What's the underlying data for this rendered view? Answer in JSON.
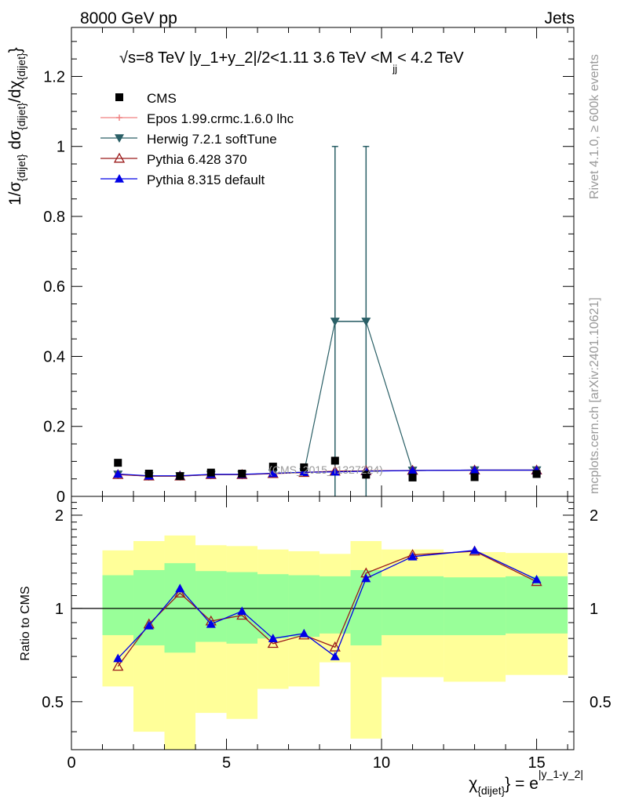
{
  "header": {
    "left": "8000 GeV pp",
    "right": "Jets"
  },
  "side_label_top": "Rivet 4.1.0, ≥ 600k events",
  "side_label_bottom": "mcplots.cern.ch [arXiv:2401.10621]",
  "watermark": "(CMS_2015_I1327224)",
  "chart_data": [
    {
      "type": "scatter",
      "title_parts": {
        "sqrt": "√",
        "main": "s=8 TeV |y_1+y_2|/2<1.11 3.6 TeV <M",
        "sub": "jj",
        "tail": "< 4.2 TeV"
      },
      "ylabel": {
        "p1": "1/σ",
        "s1": "{dijet}",
        "p2": " dσ",
        "s2": "{dijet}",
        "p3": "/dχ",
        "s3": "{dijet}",
        "p4": "}"
      },
      "xlim": [
        0,
        16.2
      ],
      "ylim": [
        0,
        1.34
      ],
      "yticks": [
        0,
        0.2,
        0.4,
        0.6,
        0.8,
        1,
        1.2
      ],
      "ytick_labels": [
        "0",
        "0.2",
        "0.4",
        "0.6",
        "0.8",
        "1",
        "1.2"
      ],
      "x": [
        1.5,
        2.5,
        3.5,
        4.5,
        5.5,
        6.5,
        7.5,
        8.5,
        9.5,
        11,
        13,
        15
      ],
      "series": [
        {
          "name": "CMS",
          "color": "#000000",
          "marker": "square",
          "values": [
            0.096,
            0.065,
            0.058,
            0.068,
            0.065,
            0.085,
            0.083,
            0.102,
            0.062,
            0.054,
            0.055,
            0.064
          ]
        },
        {
          "name": "Epos 1.99.crmc.1.6.0 lhc",
          "color": "#f08080",
          "marker": "cross",
          "values": [
            0.063,
            0.058,
            0.058,
            0.062,
            0.062,
            0.066,
            0.069,
            0.072,
            0.073,
            0.074,
            0.075,
            0.075
          ]
        },
        {
          "name": "Herwig 7.2.1 softTune",
          "color": "#2a5f66",
          "marker": "triangle-down",
          "values": [
            0.063,
            0.058,
            0.058,
            0.062,
            0.062,
            0.066,
            0.069,
            0.5,
            0.5,
            0.074,
            0.075,
            0.075
          ],
          "errors": [
            null,
            null,
            null,
            null,
            null,
            null,
            null,
            0.5,
            0.5,
            null,
            null,
            null
          ]
        },
        {
          "name": "Pythia 6.428 370",
          "color": "#9b1b1b",
          "marker": "triangle-open",
          "values": [
            0.062,
            0.058,
            0.058,
            0.062,
            0.062,
            0.065,
            0.068,
            0.072,
            0.073,
            0.074,
            0.075,
            0.075
          ]
        },
        {
          "name": "Pythia 8.315 default",
          "color": "#0000e6",
          "marker": "triangle",
          "values": [
            0.064,
            0.059,
            0.059,
            0.063,
            0.063,
            0.066,
            0.069,
            0.07,
            0.072,
            0.074,
            0.075,
            0.075
          ]
        }
      ]
    },
    {
      "type": "line",
      "ylabel": "Ratio to CMS",
      "xlabel": {
        "chi": "χ",
        "sub": "{dijet}",
        "eq": "} = e",
        "sup": "|y_1-y_2|"
      },
      "xlim": [
        0,
        16.2
      ],
      "ylim": [
        0.35,
        2.3
      ],
      "xticks": [
        0,
        5,
        10,
        15
      ],
      "xtick_labels": [
        "0",
        "5",
        "10",
        "15"
      ],
      "yticks": [
        0.5,
        1,
        2
      ],
      "ytick_labels": [
        "0.5",
        "1",
        "2"
      ],
      "reference": 1,
      "bands": [
        {
          "x0": 1,
          "x1": 2,
          "yellow": [
            0.56,
            1.54
          ],
          "green": [
            0.82,
            1.28
          ]
        },
        {
          "x0": 2,
          "x1": 3,
          "yellow": [
            0.4,
            1.65
          ],
          "green": [
            0.76,
            1.33
          ]
        },
        {
          "x0": 3,
          "x1": 4,
          "yellow": [
            0.35,
            1.72
          ],
          "green": [
            0.72,
            1.4
          ]
        },
        {
          "x0": 4,
          "x1": 5,
          "yellow": [
            0.46,
            1.6
          ],
          "green": [
            0.78,
            1.32
          ]
        },
        {
          "x0": 5,
          "x1": 6,
          "yellow": [
            0.44,
            1.59
          ],
          "green": [
            0.77,
            1.31
          ]
        },
        {
          "x0": 6,
          "x1": 7,
          "yellow": [
            0.55,
            1.55
          ],
          "green": [
            0.8,
            1.29
          ]
        },
        {
          "x0": 7,
          "x1": 8,
          "yellow": [
            0.56,
            1.53
          ],
          "green": [
            0.81,
            1.28
          ]
        },
        {
          "x0": 8,
          "x1": 9,
          "yellow": [
            0.67,
            1.5
          ],
          "green": [
            0.83,
            1.27
          ]
        },
        {
          "x0": 9,
          "x1": 10,
          "yellow": [
            0.38,
            1.65
          ],
          "green": [
            0.76,
            1.33
          ]
        },
        {
          "x0": 10,
          "x1": 12,
          "yellow": [
            0.6,
            1.55
          ],
          "green": [
            0.82,
            1.27
          ]
        },
        {
          "x0": 12,
          "x1": 14,
          "yellow": [
            0.58,
            1.52
          ],
          "green": [
            0.82,
            1.26
          ]
        },
        {
          "x0": 14,
          "x1": 16,
          "yellow": [
            0.61,
            1.51
          ],
          "green": [
            0.83,
            1.27
          ]
        }
      ],
      "x": [
        1.5,
        2.5,
        3.5,
        4.5,
        5.5,
        6.5,
        7.5,
        8.5,
        9.5,
        11,
        13,
        15
      ],
      "series": [
        {
          "name": "Pythia 6.428 370",
          "color": "#9b1b1b",
          "marker": "triangle-open",
          "values": [
            0.65,
            0.89,
            1.12,
            0.91,
            0.95,
            0.77,
            0.82,
            0.75,
            1.3,
            1.49,
            1.53,
            1.22
          ]
        },
        {
          "name": "Pythia 8.315 default",
          "color": "#0000e6",
          "marker": "triangle",
          "values": [
            0.69,
            0.88,
            1.16,
            0.89,
            0.98,
            0.8,
            0.83,
            0.7,
            1.25,
            1.47,
            1.54,
            1.24
          ]
        }
      ]
    }
  ]
}
